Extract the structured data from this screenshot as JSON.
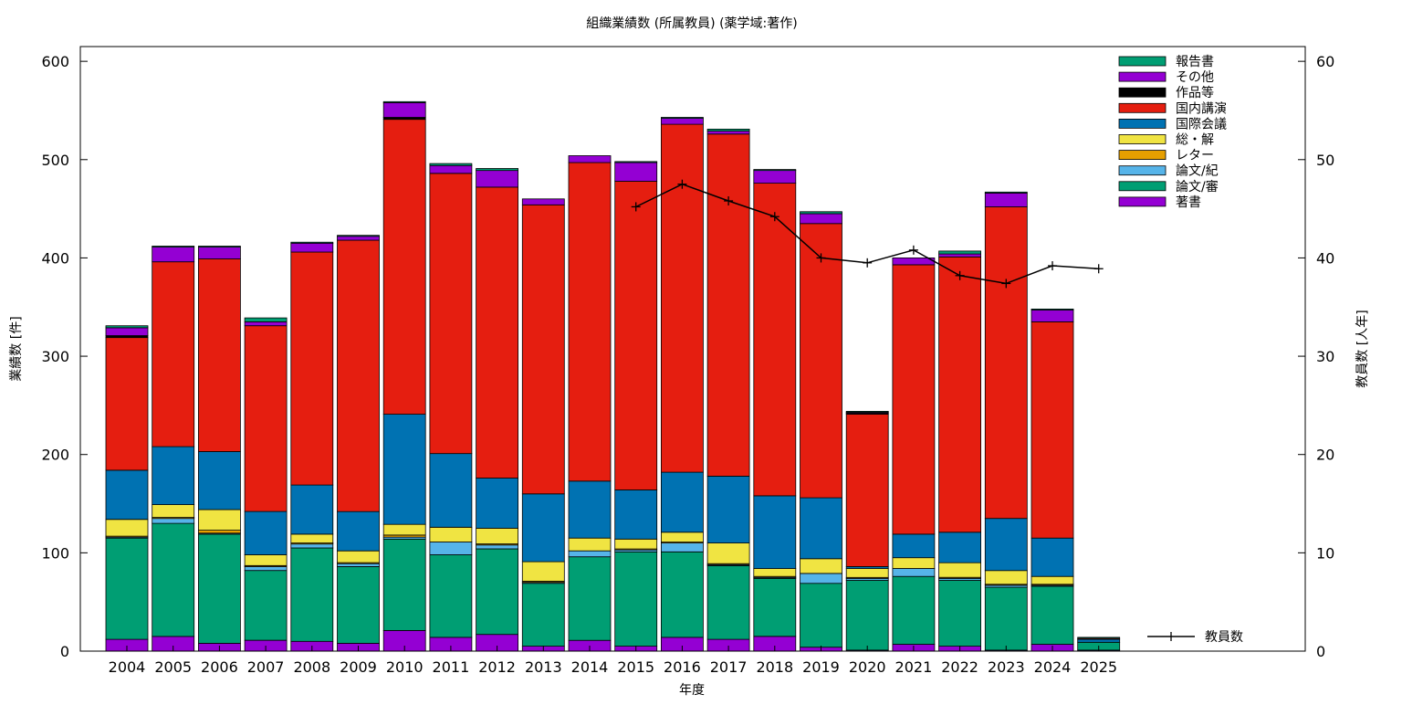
{
  "chart_data": {
    "type": "bar",
    "stacked": true,
    "title": "組織業績数 (所属教員) (薬学域:著作)",
    "xlabel": "年度",
    "ylabel": "業績数 [件]",
    "y2label": "教員数 [人年]",
    "categories": [
      "2004",
      "2005",
      "2006",
      "2007",
      "2008",
      "2009",
      "2010",
      "2011",
      "2012",
      "2013",
      "2014",
      "2015",
      "2016",
      "2017",
      "2018",
      "2019",
      "2020",
      "2021",
      "2022",
      "2023",
      "2024",
      "2025"
    ],
    "ylim": [
      0,
      615
    ],
    "y2lim": [
      0,
      61.5
    ],
    "yticks": [
      0,
      100,
      200,
      300,
      400,
      500,
      600
    ],
    "y2ticks": [
      0,
      10,
      20,
      30,
      40,
      50,
      60
    ],
    "legend_position": "top-right",
    "grid": false,
    "series": [
      {
        "name": "著書",
        "color": "#9400d3",
        "values": [
          12,
          15,
          8,
          11,
          10,
          8,
          21,
          14,
          17,
          5,
          11,
          5,
          14,
          12,
          15,
          4,
          1,
          7,
          5,
          1,
          7,
          1
        ]
      },
      {
        "name": "論文/審",
        "color": "#009e73",
        "values": [
          103,
          115,
          111,
          71,
          95,
          78,
          93,
          84,
          87,
          64,
          85,
          96,
          87,
          75,
          59,
          65,
          71,
          69,
          67,
          64,
          59,
          8
        ]
      },
      {
        "name": "論文/紀",
        "color": "#56b4e9",
        "values": [
          1,
          5,
          1,
          4,
          4,
          3,
          2,
          13,
          4,
          1,
          6,
          2,
          9,
          1,
          1,
          10,
          2,
          8,
          2,
          2,
          1,
          0
        ]
      },
      {
        "name": "レター",
        "color": "#e69f00",
        "values": [
          1,
          1,
          3,
          1,
          1,
          1,
          2,
          0,
          1,
          1,
          0,
          1,
          1,
          1,
          1,
          0,
          1,
          0,
          1,
          1,
          1,
          0
        ]
      },
      {
        "name": "総・解",
        "color": "#f0e442",
        "values": [
          17,
          13,
          21,
          11,
          9,
          12,
          11,
          15,
          16,
          20,
          13,
          10,
          10,
          21,
          8,
          15,
          9,
          11,
          15,
          14,
          8,
          0
        ]
      },
      {
        "name": "国際会議",
        "color": "#0072b2",
        "values": [
          50,
          59,
          59,
          44,
          50,
          40,
          112,
          75,
          51,
          69,
          58,
          50,
          61,
          68,
          74,
          62,
          2,
          24,
          31,
          53,
          39,
          3
        ]
      },
      {
        "name": "国内講演",
        "color": "#e51e10",
        "values": [
          135,
          188,
          196,
          189,
          237,
          276,
          300,
          285,
          296,
          294,
          324,
          314,
          354,
          348,
          318,
          279,
          155,
          274,
          280,
          317,
          220,
          1
        ]
      },
      {
        "name": "作品等",
        "color": "#000000",
        "values": [
          2,
          0,
          0,
          0,
          0,
          0,
          2,
          0,
          0,
          0,
          0,
          0,
          0,
          0,
          0,
          0,
          1,
          0,
          0,
          0,
          0,
          0
        ]
      },
      {
        "name": "その他",
        "color": "#9400d3",
        "values": [
          8,
          15,
          12,
          4,
          9,
          4,
          15,
          8,
          17,
          6,
          7,
          19,
          6,
          3,
          13,
          10,
          1,
          7,
          3,
          14,
          12,
          0
        ]
      },
      {
        "name": "報告書",
        "color": "#009e73",
        "values": [
          2,
          1,
          1,
          4,
          1,
          1,
          1,
          2,
          2,
          0,
          0,
          1,
          1,
          2,
          1,
          2,
          1,
          0,
          3,
          1,
          1,
          1
        ]
      }
    ],
    "line_series": {
      "name": "教員数",
      "color": "#000000",
      "axis": "y2",
      "categories": [
        "2015",
        "2016",
        "2017",
        "2018",
        "2019",
        "2020",
        "2021",
        "2022",
        "2023",
        "2024",
        "2025"
      ],
      "values": [
        45.2,
        47.5,
        45.8,
        44.2,
        40.0,
        39.5,
        40.8,
        38.2,
        37.4,
        39.2,
        38.9
      ]
    }
  }
}
